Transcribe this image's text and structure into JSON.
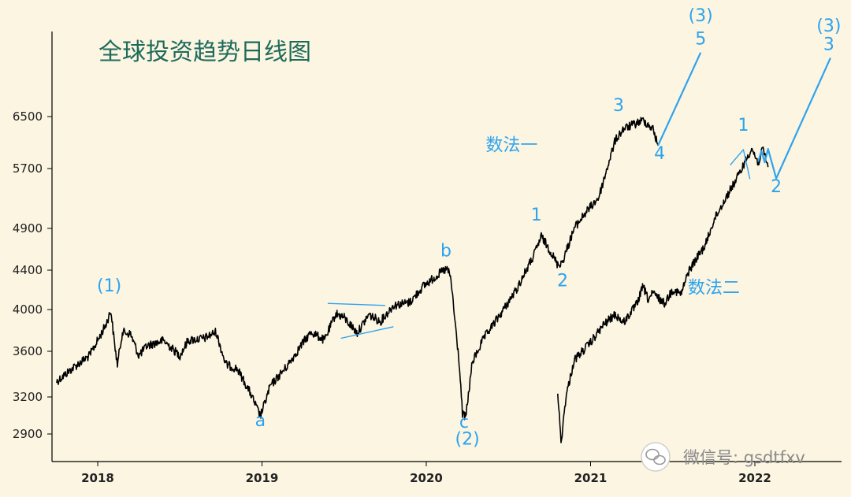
{
  "chart_data": {
    "type": "line",
    "title": "全球投资趋势日线图",
    "y_ticks": [
      2900,
      3200,
      3600,
      4000,
      4400,
      4900,
      5700,
      6500
    ],
    "x_ticks": [
      "2018",
      "2019",
      "2020",
      "2021",
      "2022"
    ],
    "series": [
      {
        "color": "#000000",
        "points": [
          [
            2017.75,
            3330
          ],
          [
            2017.85,
            3450
          ],
          [
            2017.95,
            3560
          ],
          [
            2018.0,
            3700
          ],
          [
            2018.05,
            3850
          ],
          [
            2018.08,
            3990
          ],
          [
            2018.1,
            3700
          ],
          [
            2018.12,
            3480
          ],
          [
            2018.15,
            3780
          ],
          [
            2018.2,
            3760
          ],
          [
            2018.25,
            3560
          ],
          [
            2018.3,
            3650
          ],
          [
            2018.4,
            3700
          ],
          [
            2018.5,
            3560
          ],
          [
            2018.55,
            3700
          ],
          [
            2018.65,
            3720
          ],
          [
            2018.72,
            3780
          ],
          [
            2018.78,
            3480
          ],
          [
            2018.85,
            3440
          ],
          [
            2018.93,
            3230
          ],
          [
            2018.99,
            3040
          ],
          [
            2019.05,
            3290
          ],
          [
            2019.15,
            3460
          ],
          [
            2019.25,
            3680
          ],
          [
            2019.3,
            3780
          ],
          [
            2019.38,
            3700
          ],
          [
            2019.45,
            3960
          ],
          [
            2019.5,
            3920
          ],
          [
            2019.58,
            3770
          ],
          [
            2019.65,
            3950
          ],
          [
            2019.72,
            3880
          ],
          [
            2019.8,
            4040
          ],
          [
            2019.9,
            4070
          ],
          [
            2019.98,
            4230
          ],
          [
            2020.1,
            4390
          ],
          [
            2020.13,
            4410
          ],
          [
            2020.15,
            4300
          ],
          [
            2020.2,
            3500
          ],
          [
            2020.22,
            3060
          ],
          [
            2020.24,
            3030
          ],
          [
            2020.28,
            3500
          ],
          [
            2020.35,
            3720
          ],
          [
            2020.45,
            3950
          ],
          [
            2020.55,
            4200
          ],
          [
            2020.65,
            4550
          ],
          [
            2020.7,
            4800
          ],
          [
            2020.75,
            4640
          ],
          [
            2020.8,
            4460
          ],
          [
            2020.83,
            4500
          ],
          [
            2020.9,
            4900
          ],
          [
            2020.97,
            5100
          ],
          [
            2021.05,
            5300
          ],
          [
            2021.1,
            5700
          ],
          [
            2021.15,
            6120
          ],
          [
            2021.2,
            6300
          ],
          [
            2021.28,
            6390
          ],
          [
            2021.32,
            6440
          ],
          [
            2021.38,
            6300
          ],
          [
            2021.41,
            6040
          ]
        ]
      },
      {
        "color": "#000000",
        "points": [
          [
            2020.8,
            3250
          ],
          [
            2020.82,
            2830
          ],
          [
            2020.85,
            3200
          ],
          [
            2020.9,
            3520
          ],
          [
            2021.0,
            3680
          ],
          [
            2021.08,
            3850
          ],
          [
            2021.15,
            3950
          ],
          [
            2021.2,
            3870
          ],
          [
            2021.28,
            4050
          ],
          [
            2021.32,
            4230
          ],
          [
            2021.35,
            4100
          ],
          [
            2021.38,
            4160
          ],
          [
            2021.45,
            4060
          ],
          [
            2021.5,
            4200
          ],
          [
            2021.55,
            4150
          ],
          [
            2021.6,
            4400
          ],
          [
            2021.65,
            4550
          ],
          [
            2021.7,
            4700
          ],
          [
            2021.75,
            5000
          ],
          [
            2021.8,
            5200
          ],
          [
            2021.85,
            5400
          ],
          [
            2021.9,
            5600
          ],
          [
            2021.95,
            5850
          ],
          [
            2021.98,
            6000
          ],
          [
            2022.02,
            5780
          ],
          [
            2022.05,
            5990
          ],
          [
            2022.08,
            5720
          ]
        ]
      }
    ],
    "projections": [
      {
        "color": "#2ea3ee",
        "points": [
          [
            2021.41,
            6040
          ],
          [
            2021.67,
            7600
          ]
        ]
      },
      {
        "color": "#2ea3ee",
        "points": [
          [
            2022.02,
            5800
          ],
          [
            2022.04,
            5960
          ],
          [
            2022.06,
            5790
          ],
          [
            2022.08,
            5990
          ],
          [
            2022.13,
            5560
          ],
          [
            2022.46,
            7500
          ]
        ]
      }
    ],
    "triangles": [
      {
        "color": "#2ea3ee",
        "points": [
          [
            2019.4,
            4060
          ],
          [
            2019.75,
            4040
          ]
        ]
      },
      {
        "color": "#2ea3ee",
        "points": [
          [
            2019.48,
            3720
          ],
          [
            2019.8,
            3830
          ]
        ]
      },
      {
        "color": "#2ea3ee",
        "points": [
          [
            2021.85,
            5750
          ],
          [
            2021.93,
            5980
          ],
          [
            2021.97,
            5550
          ]
        ]
      }
    ],
    "wave_labels": [
      {
        "text": "(1)",
        "x": 2018.07,
        "y": 4180
      },
      {
        "text": "a",
        "x": 2018.99,
        "y": 2960
      },
      {
        "text": "b",
        "x": 2020.12,
        "y": 4560
      },
      {
        "text": "c",
        "x": 2020.23,
        "y": 2950
      },
      {
        "text": "(2)",
        "x": 2020.25,
        "y": 2820
      },
      {
        "text": "1",
        "x": 2020.67,
        "y": 5000
      },
      {
        "text": "2",
        "x": 2020.83,
        "y": 4230
      },
      {
        "text": "3",
        "x": 2021.17,
        "y": 6590
      },
      {
        "text": "4",
        "x": 2021.42,
        "y": 5840
      },
      {
        "text": "5",
        "x": 2021.67,
        "y": 7750
      },
      {
        "text": "(3)",
        "x": 2021.67,
        "y": 8200
      },
      {
        "text": "1",
        "x": 2021.93,
        "y": 6270
      },
      {
        "text": "2",
        "x": 2022.13,
        "y": 5370
      },
      {
        "text": "3",
        "x": 2022.45,
        "y": 7650
      },
      {
        "text": "(3)",
        "x": 2022.45,
        "y": 8000
      }
    ],
    "method_labels": [
      {
        "text": "数法一",
        "x": 2020.52,
        "y": 5960
      },
      {
        "text": "数法二",
        "x": 2021.75,
        "y": 4160
      }
    ]
  },
  "watermark": {
    "text": "微信号: gsdtfxv",
    "icon": "wechat-icon"
  }
}
